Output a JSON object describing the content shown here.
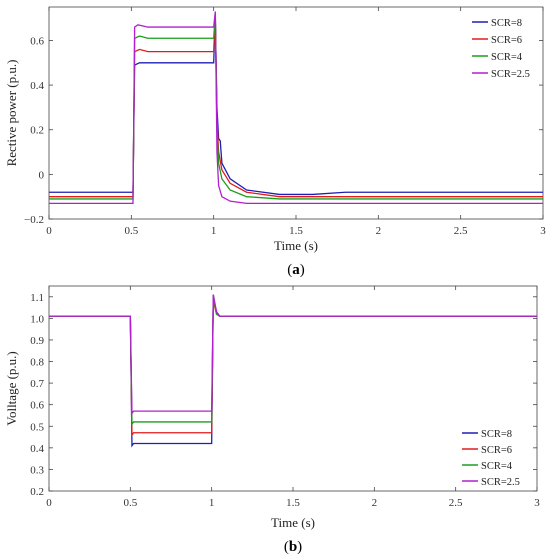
{
  "chart_data": [
    {
      "type": "line",
      "panel_label_open": "(",
      "panel_label": "a",
      "panel_label_close": ")",
      "xlabel": "Time (s)",
      "ylabel": "Rective power (p.u.)",
      "xlim": [
        0,
        3
      ],
      "ylim": [
        -0.2,
        0.75
      ],
      "xticks": [
        0,
        0.5,
        1,
        1.5,
        2,
        2.5,
        3
      ],
      "xtick_labels": [
        "0",
        "0.5",
        "1",
        "1.5",
        "2",
        "2.5",
        "3"
      ],
      "yticks": [
        -0.2,
        0,
        0.2,
        0.4,
        0.6
      ],
      "ytick_labels": [
        "−0.2",
        "0",
        "0.2",
        "0.4",
        "0.6"
      ],
      "grid": false,
      "legend_position": "top-right",
      "series": [
        {
          "name": "SCR=8",
          "color": "#1f1fb4",
          "points": [
            [
              0,
              -0.08
            ],
            [
              0.51,
              -0.08
            ],
            [
              0.52,
              0.49
            ],
            [
              0.55,
              0.5
            ],
            [
              0.6,
              0.5
            ],
            [
              0.7,
              0.5
            ],
            [
              0.8,
              0.5
            ],
            [
              0.9,
              0.5
            ],
            [
              1.0,
              0.5
            ],
            [
              1.01,
              0.7
            ],
            [
              1.02,
              0.3
            ],
            [
              1.03,
              0.16
            ],
            [
              1.04,
              0.15
            ],
            [
              1.05,
              0.05
            ],
            [
              1.1,
              -0.02
            ],
            [
              1.2,
              -0.07
            ],
            [
              1.4,
              -0.09
            ],
            [
              1.6,
              -0.09
            ],
            [
              1.8,
              -0.08
            ],
            [
              2.0,
              -0.08
            ],
            [
              2.2,
              -0.08
            ],
            [
              2.5,
              -0.08
            ],
            [
              2.8,
              -0.08
            ],
            [
              3.0,
              -0.08
            ]
          ]
        },
        {
          "name": "SCR=6",
          "color": "#e31a1c",
          "points": [
            [
              0,
              -0.1
            ],
            [
              0.51,
              -0.1
            ],
            [
              0.52,
              0.55
            ],
            [
              0.55,
              0.56
            ],
            [
              0.6,
              0.55
            ],
            [
              0.7,
              0.55
            ],
            [
              0.8,
              0.55
            ],
            [
              0.9,
              0.55
            ],
            [
              1.0,
              0.55
            ],
            [
              1.01,
              0.71
            ],
            [
              1.02,
              0.25
            ],
            [
              1.03,
              0.1
            ],
            [
              1.05,
              0.02
            ],
            [
              1.1,
              -0.04
            ],
            [
              1.2,
              -0.08
            ],
            [
              1.4,
              -0.1
            ],
            [
              1.6,
              -0.1
            ],
            [
              1.8,
              -0.1
            ],
            [
              2.0,
              -0.1
            ],
            [
              2.5,
              -0.1
            ],
            [
              3.0,
              -0.1
            ]
          ]
        },
        {
          "name": "SCR=4",
          "color": "#1a9e1a",
          "points": [
            [
              0,
              -0.11
            ],
            [
              0.51,
              -0.11
            ],
            [
              0.52,
              0.61
            ],
            [
              0.55,
              0.62
            ],
            [
              0.6,
              0.61
            ],
            [
              0.7,
              0.61
            ],
            [
              0.8,
              0.61
            ],
            [
              0.9,
              0.61
            ],
            [
              1.0,
              0.61
            ],
            [
              1.01,
              0.72
            ],
            [
              1.02,
              0.2
            ],
            [
              1.03,
              0.05
            ],
            [
              1.05,
              -0.02
            ],
            [
              1.1,
              -0.07
            ],
            [
              1.2,
              -0.1
            ],
            [
              1.4,
              -0.11
            ],
            [
              1.6,
              -0.11
            ],
            [
              1.8,
              -0.11
            ],
            [
              2.0,
              -0.11
            ],
            [
              2.5,
              -0.11
            ],
            [
              3.0,
              -0.11
            ]
          ]
        },
        {
          "name": "SCR=2.5",
          "color": "#b21fd0",
          "points": [
            [
              0,
              -0.13
            ],
            [
              0.51,
              -0.13
            ],
            [
              0.52,
              0.66
            ],
            [
              0.54,
              0.67
            ],
            [
              0.6,
              0.66
            ],
            [
              0.7,
              0.66
            ],
            [
              0.8,
              0.66
            ],
            [
              0.9,
              0.66
            ],
            [
              1.0,
              0.66
            ],
            [
              1.01,
              0.73
            ],
            [
              1.02,
              0.1
            ],
            [
              1.03,
              -0.05
            ],
            [
              1.05,
              -0.1
            ],
            [
              1.1,
              -0.12
            ],
            [
              1.2,
              -0.13
            ],
            [
              1.4,
              -0.13
            ],
            [
              1.6,
              -0.13
            ],
            [
              1.8,
              -0.13
            ],
            [
              2.0,
              -0.13
            ],
            [
              2.5,
              -0.13
            ],
            [
              3.0,
              -0.13
            ]
          ]
        }
      ]
    },
    {
      "type": "line",
      "panel_label_open": "(",
      "panel_label": "b",
      "panel_label_close": ")",
      "xlabel": "Time (s)",
      "ylabel": "Volltage (p.u.)",
      "xlim": [
        0,
        3
      ],
      "ylim": [
        0.2,
        1.15
      ],
      "xticks": [
        0,
        0.5,
        1,
        1.5,
        2,
        2.5,
        3
      ],
      "xtick_labels": [
        "0",
        "0.5",
        "1",
        "1.5",
        "2",
        "2.5",
        "3"
      ],
      "yticks": [
        0.2,
        0.3,
        0.4,
        0.5,
        0.6,
        0.7,
        0.8,
        0.9,
        1.0,
        1.1
      ],
      "ytick_labels": [
        "0.2",
        "0.3",
        "0.4",
        "0.5",
        "0.6",
        "0.7",
        "0.8",
        "0.9",
        "1.0",
        "1.1"
      ],
      "grid": false,
      "legend_position": "bottom-right",
      "series": [
        {
          "name": "SCR=8",
          "color": "#1f1fb4",
          "points": [
            [
              0,
              1.01
            ],
            [
              0.5,
              1.01
            ],
            [
              0.51,
              0.41
            ],
            [
              0.52,
              0.42
            ],
            [
              0.6,
              0.42
            ],
            [
              0.8,
              0.42
            ],
            [
              1.0,
              0.42
            ],
            [
              1.01,
              1.1
            ],
            [
              1.02,
              1.06
            ],
            [
              1.03,
              1.03
            ],
            [
              1.05,
              1.01
            ],
            [
              1.1,
              1.01
            ],
            [
              1.5,
              1.01
            ],
            [
              2.0,
              1.01
            ],
            [
              2.5,
              1.01
            ],
            [
              3.0,
              1.01
            ]
          ]
        },
        {
          "name": "SCR=6",
          "color": "#e31a1c",
          "points": [
            [
              0,
              1.01
            ],
            [
              0.5,
              1.01
            ],
            [
              0.51,
              0.46
            ],
            [
              0.52,
              0.47
            ],
            [
              0.6,
              0.47
            ],
            [
              0.8,
              0.47
            ],
            [
              1.0,
              0.47
            ],
            [
              1.01,
              1.1
            ],
            [
              1.02,
              1.05
            ],
            [
              1.03,
              1.02
            ],
            [
              1.05,
              1.01
            ],
            [
              1.1,
              1.01
            ],
            [
              1.5,
              1.01
            ],
            [
              2.0,
              1.01
            ],
            [
              2.5,
              1.01
            ],
            [
              3.0,
              1.01
            ]
          ]
        },
        {
          "name": "SCR=4",
          "color": "#1a9e1a",
          "points": [
            [
              0,
              1.01
            ],
            [
              0.5,
              1.01
            ],
            [
              0.51,
              0.51
            ],
            [
              0.52,
              0.52
            ],
            [
              0.6,
              0.52
            ],
            [
              0.8,
              0.52
            ],
            [
              1.0,
              0.52
            ],
            [
              1.01,
              1.11
            ],
            [
              1.02,
              1.06
            ],
            [
              1.03,
              1.02
            ],
            [
              1.05,
              1.01
            ],
            [
              1.1,
              1.01
            ],
            [
              1.5,
              1.01
            ],
            [
              2.0,
              1.01
            ],
            [
              2.5,
              1.01
            ],
            [
              3.0,
              1.01
            ]
          ]
        },
        {
          "name": "SCR=2.5",
          "color": "#b21fd0",
          "points": [
            [
              0,
              1.01
            ],
            [
              0.5,
              1.01
            ],
            [
              0.51,
              0.56
            ],
            [
              0.52,
              0.57
            ],
            [
              0.6,
              0.57
            ],
            [
              0.8,
              0.57
            ],
            [
              1.0,
              0.57
            ],
            [
              1.01,
              1.11
            ],
            [
              1.02,
              1.07
            ],
            [
              1.03,
              1.03
            ],
            [
              1.05,
              1.01
            ],
            [
              1.1,
              1.01
            ],
            [
              1.5,
              1.01
            ],
            [
              2.0,
              1.01
            ],
            [
              2.5,
              1.01
            ],
            [
              3.0,
              1.01
            ]
          ]
        }
      ]
    }
  ]
}
